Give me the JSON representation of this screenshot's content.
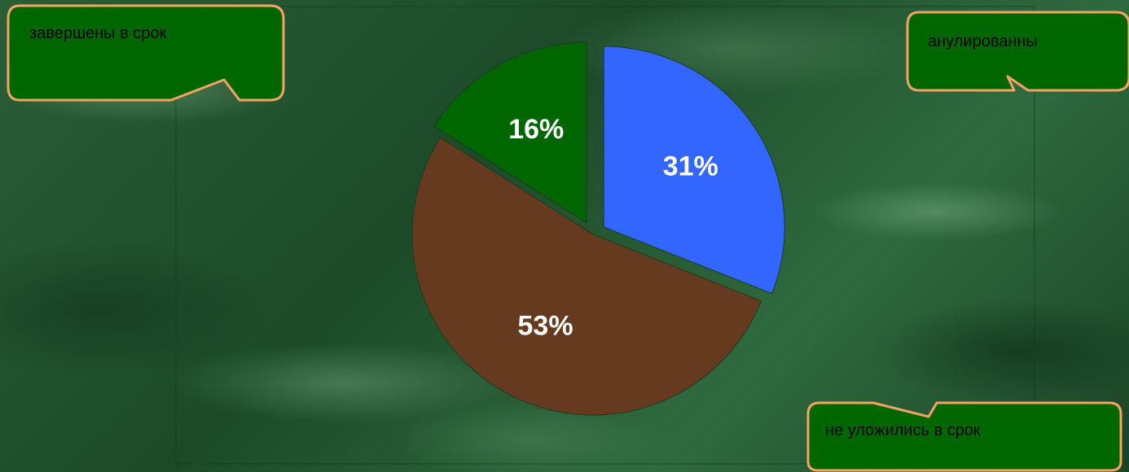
{
  "chart_data": {
    "type": "pie",
    "title": "",
    "slices": [
      {
        "label": "анулированны",
        "value": 31,
        "value_label": "31%",
        "color": "#3366ff",
        "exploded": true
      },
      {
        "label": "не уложились в срок",
        "value": 53,
        "value_label": "53%",
        "color": "#663a1f",
        "exploded": false
      },
      {
        "label": "завершены в срок",
        "value": 16,
        "value_label": "16%",
        "color": "#006600",
        "exploded": true
      }
    ]
  },
  "colors": {
    "callout_fill": "#006600",
    "callout_border": "#f4a460",
    "slice_label": "#ffffff"
  }
}
